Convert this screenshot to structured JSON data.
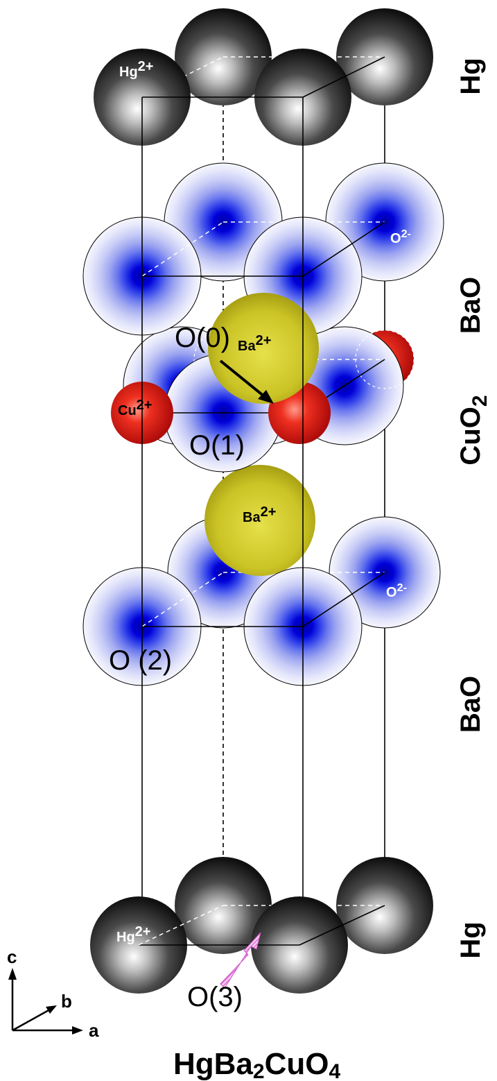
{
  "title": {
    "main": "HgBa",
    "sub1": "2",
    "mid": "CuO",
    "sub2": "4"
  },
  "layers": {
    "hg_top": "Hg",
    "bao_top": "BaO",
    "cuo2_main": "CuO",
    "cuo2_sub": "2",
    "bao_bottom": "BaO",
    "hg_bottom": "Hg"
  },
  "ions": {
    "hg": {
      "base": "Hg",
      "charge": "2+"
    },
    "ba": {
      "base": "Ba",
      "charge": "2+"
    },
    "cu": {
      "base": "Cu",
      "charge": "2+"
    },
    "o": {
      "base": "O",
      "charge": "2-"
    }
  },
  "sites": {
    "o0": "O(0)",
    "o1": "O(1)",
    "o2": "O (2)",
    "o3": "O(3)"
  },
  "axes": {
    "c": "c",
    "b": "b",
    "a": "a"
  },
  "colors": {
    "hg": "#1a1a1a",
    "ba": "#c9c020",
    "cu": "#e01818",
    "oxygen_core": "#0000cc",
    "o3_arrow": "#e080e0"
  }
}
